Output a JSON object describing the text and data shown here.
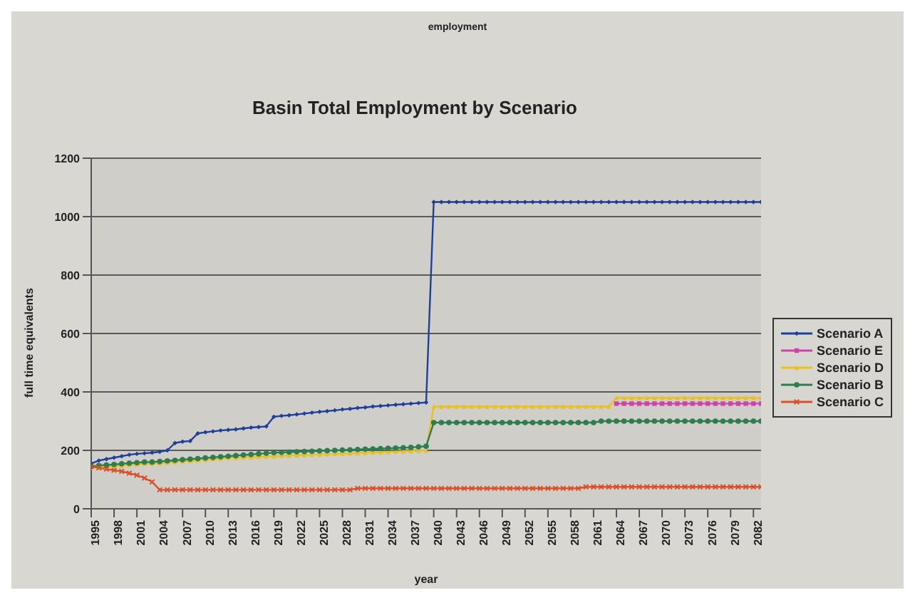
{
  "chart_data": {
    "type": "line",
    "subtitle": "employment",
    "title": "Basin Total Employment by Scenario",
    "xlabel": "year",
    "ylabel": "full time equivalents",
    "x": [
      1995,
      1996,
      1997,
      1998,
      1999,
      2000,
      2001,
      2002,
      2003,
      2004,
      2005,
      2006,
      2007,
      2008,
      2009,
      2010,
      2011,
      2012,
      2013,
      2014,
      2015,
      2016,
      2017,
      2018,
      2019,
      2020,
      2021,
      2022,
      2023,
      2024,
      2025,
      2026,
      2027,
      2028,
      2029,
      2030,
      2031,
      2032,
      2033,
      2034,
      2035,
      2036,
      2037,
      2038,
      2039,
      2040,
      2041,
      2042,
      2043,
      2044,
      2045,
      2046,
      2047,
      2048,
      2049,
      2050,
      2051,
      2052,
      2053,
      2054,
      2055,
      2056,
      2057,
      2058,
      2059,
      2060,
      2061,
      2062,
      2063,
      2064,
      2065,
      2066,
      2067,
      2068,
      2069,
      2070,
      2071,
      2072,
      2073,
      2074,
      2075,
      2076,
      2077,
      2078,
      2079,
      2080,
      2081,
      2082,
      2083
    ],
    "xlim": [
      1995,
      2083
    ],
    "xticks": [
      1995,
      1998,
      2001,
      2004,
      2007,
      2010,
      2013,
      2016,
      2019,
      2022,
      2025,
      2028,
      2031,
      2034,
      2037,
      2040,
      2043,
      2046,
      2049,
      2052,
      2055,
      2058,
      2061,
      2064,
      2067,
      2070,
      2073,
      2076,
      2079,
      2082
    ],
    "ylim": [
      0,
      1200
    ],
    "yticks": [
      0,
      200,
      400,
      600,
      800,
      1000,
      1200
    ],
    "grid": "y",
    "legend": "right",
    "series": [
      {
        "name": "Scenario A",
        "color": "#1f3f99",
        "marker": "diamond",
        "values": [
          155,
          165,
          170,
          175,
          180,
          185,
          188,
          190,
          192,
          195,
          200,
          225,
          230,
          232,
          258,
          262,
          265,
          268,
          270,
          272,
          275,
          278,
          280,
          282,
          315,
          318,
          320,
          323,
          326,
          329,
          332,
          334,
          337,
          340,
          342,
          345,
          347,
          350,
          352,
          354,
          356,
          358,
          360,
          362,
          364,
          1050,
          1050,
          1050,
          1050,
          1050,
          1050,
          1050,
          1050,
          1050,
          1050,
          1050,
          1050,
          1050,
          1050,
          1050,
          1050,
          1050,
          1050,
          1050,
          1050,
          1050,
          1050,
          1050,
          1050,
          1050,
          1050,
          1050,
          1050,
          1050,
          1050,
          1050,
          1050,
          1050,
          1050,
          1050,
          1050,
          1050,
          1050,
          1050,
          1050,
          1050,
          1050,
          1050,
          1050
        ]
      },
      {
        "name": "Scenario E",
        "color": "#cc44aa",
        "marker": "square",
        "values": [
          null,
          null,
          null,
          null,
          null,
          null,
          null,
          null,
          null,
          null,
          null,
          null,
          null,
          null,
          null,
          null,
          null,
          null,
          null,
          null,
          null,
          null,
          null,
          null,
          null,
          null,
          null,
          null,
          null,
          null,
          null,
          null,
          null,
          null,
          null,
          null,
          null,
          null,
          null,
          null,
          null,
          null,
          null,
          null,
          null,
          null,
          null,
          null,
          null,
          null,
          null,
          null,
          null,
          null,
          null,
          null,
          null,
          null,
          null,
          null,
          null,
          null,
          null,
          null,
          null,
          null,
          null,
          null,
          null,
          360,
          360,
          360,
          360,
          360,
          360,
          360,
          360,
          360,
          360,
          360,
          360,
          360,
          360,
          360,
          360,
          360,
          360,
          360,
          360
        ]
      },
      {
        "name": "Scenario D",
        "color": "#e8c020",
        "marker": "triangle",
        "values": [
          140,
          142,
          144,
          146,
          148,
          150,
          152,
          154,
          155,
          156,
          158,
          160,
          162,
          164,
          166,
          168,
          170,
          172,
          174,
          175,
          176,
          177,
          178,
          179,
          180,
          181,
          182,
          183,
          184,
          185,
          186,
          187,
          188,
          189,
          190,
          191,
          192,
          193,
          194,
          195,
          196,
          197,
          198,
          199,
          200,
          350,
          350,
          350,
          350,
          350,
          350,
          350,
          350,
          350,
          350,
          350,
          350,
          350,
          350,
          350,
          350,
          350,
          350,
          350,
          350,
          350,
          350,
          350,
          350,
          380,
          380,
          380,
          380,
          380,
          380,
          380,
          380,
          380,
          380,
          380,
          380,
          380,
          380,
          380,
          380,
          380,
          380,
          380,
          380
        ]
      },
      {
        "name": "Scenario B",
        "color": "#2e7d4f",
        "marker": "circle",
        "values": [
          145,
          148,
          150,
          152,
          154,
          156,
          158,
          160,
          160,
          162,
          164,
          166,
          168,
          170,
          172,
          174,
          176,
          178,
          180,
          182,
          184,
          186,
          188,
          190,
          192,
          193,
          194,
          195,
          196,
          197,
          198,
          199,
          200,
          201,
          202,
          203,
          204,
          205,
          206,
          207,
          208,
          209,
          210,
          212,
          214,
          295,
          295,
          295,
          295,
          295,
          295,
          295,
          295,
          295,
          295,
          295,
          295,
          295,
          295,
          295,
          295,
          295,
          295,
          295,
          295,
          295,
          295,
          300,
          300,
          300,
          300,
          300,
          300,
          300,
          300,
          300,
          300,
          300,
          300,
          300,
          300,
          300,
          300,
          300,
          300,
          300,
          300,
          300,
          300
        ]
      },
      {
        "name": "Scenario C",
        "color": "#d9502a",
        "marker": "cross",
        "values": [
          145,
          140,
          136,
          132,
          128,
          122,
          115,
          105,
          92,
          65,
          65,
          65,
          65,
          65,
          65,
          65,
          65,
          65,
          65,
          65,
          65,
          65,
          65,
          65,
          65,
          65,
          65,
          65,
          65,
          65,
          65,
          65,
          65,
          65,
          65,
          70,
          70,
          70,
          70,
          70,
          70,
          70,
          70,
          70,
          70,
          70,
          70,
          70,
          70,
          70,
          70,
          70,
          70,
          70,
          70,
          70,
          70,
          70,
          70,
          70,
          70,
          70,
          70,
          70,
          70,
          75,
          75,
          75,
          75,
          75,
          75,
          75,
          75,
          75,
          75,
          75,
          75,
          75,
          75,
          75,
          75,
          75,
          75,
          75,
          75,
          75,
          75,
          75,
          75
        ]
      }
    ]
  }
}
